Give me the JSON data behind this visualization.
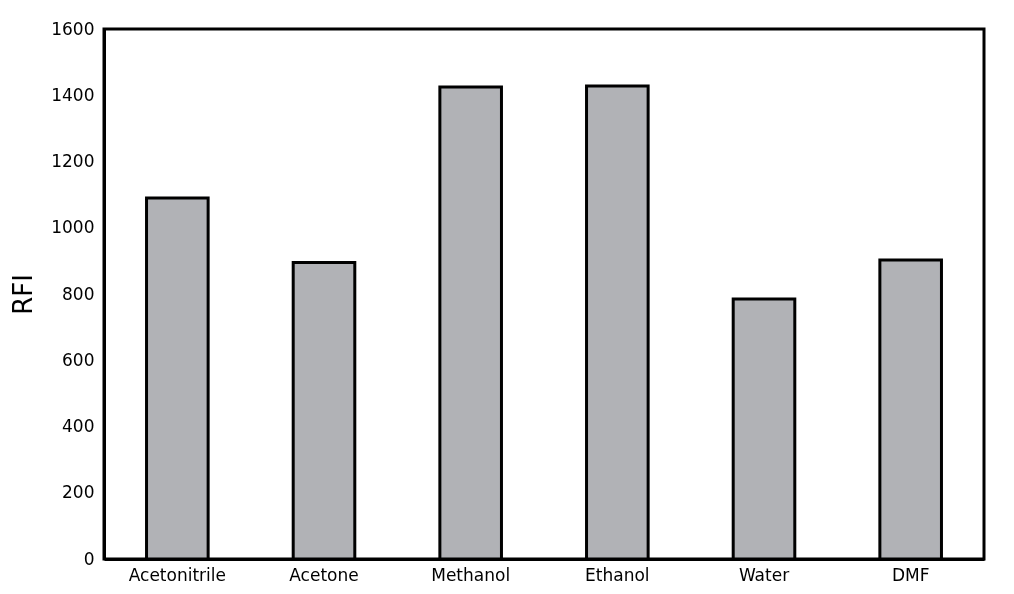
{
  "chart_data": {
    "type": "bar",
    "ylabel": "RFI",
    "categories": [
      "Acetonitrile",
      "Acetone",
      "Methanol",
      "Ethanol",
      "Water",
      "DMF"
    ],
    "values": [
      1090,
      895,
      1425,
      1428,
      785,
      903
    ],
    "color": "#b1b2b6",
    "ylim": [
      0,
      1600
    ],
    "yticks": [
      0,
      200,
      400,
      600,
      800,
      1000,
      1200,
      1400,
      1600
    ],
    "grid": false
  }
}
